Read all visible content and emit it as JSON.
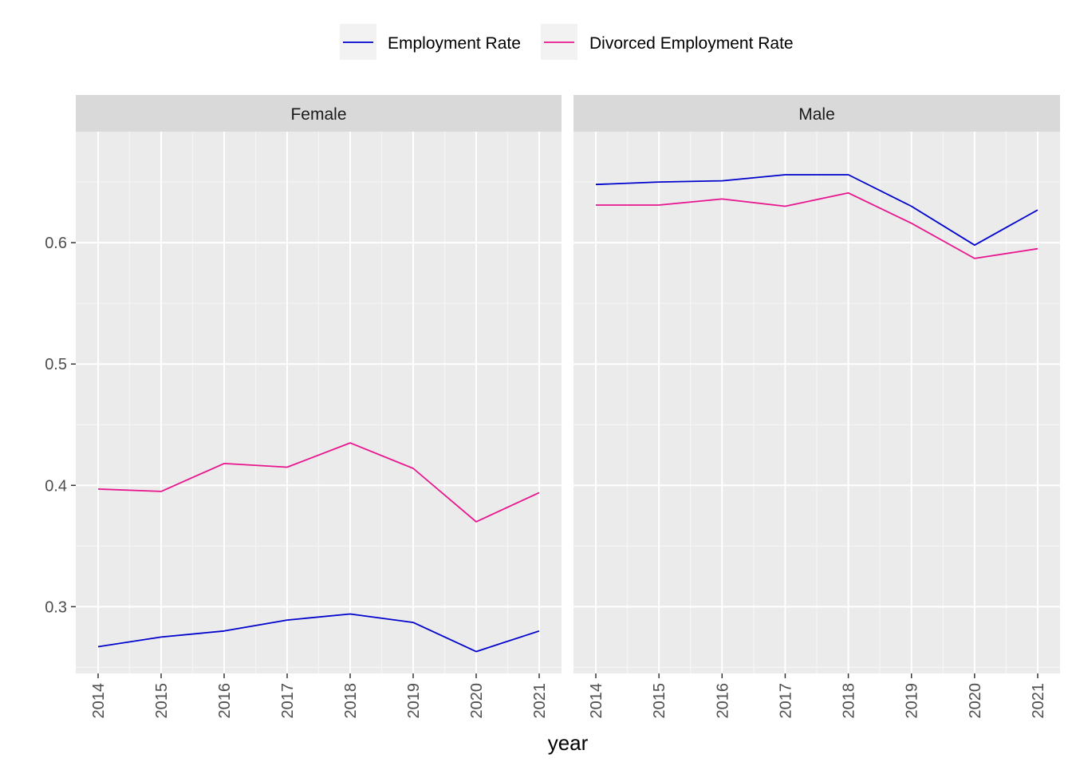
{
  "chart_data": {
    "type": "line",
    "xlabel": "year",
    "ylabel": "",
    "x": [
      2014,
      2015,
      2016,
      2017,
      2018,
      2019,
      2020,
      2021
    ],
    "x_tick_labels": [
      "2014",
      "2015",
      "2016",
      "2017",
      "2018",
      "2019",
      "2020",
      "2021"
    ],
    "ylim": [
      0.245,
      0.6915
    ],
    "y_ticks": [
      0.3,
      0.4,
      0.5,
      0.6
    ],
    "y_tick_labels": [
      "0.3",
      "0.4",
      "0.5",
      "0.6"
    ],
    "grid": true,
    "legend_position": "top",
    "legend": [
      {
        "name": "Employment Rate",
        "color": "#0000CD"
      },
      {
        "name": "Divorced Employment Rate",
        "color": "#E8168E"
      }
    ],
    "panels": [
      {
        "title": "Female",
        "series": [
          {
            "name": "Employment Rate",
            "color": "#0000CD",
            "values": [
              0.267,
              0.275,
              0.28,
              0.289,
              0.294,
              0.287,
              0.263,
              0.28
            ]
          },
          {
            "name": "Divorced Employment Rate",
            "color": "#E8168E",
            "values": [
              0.397,
              0.395,
              0.418,
              0.415,
              0.435,
              0.414,
              0.37,
              0.394
            ]
          }
        ]
      },
      {
        "title": "Male",
        "series": [
          {
            "name": "Employment Rate",
            "color": "#0000CD",
            "values": [
              0.648,
              0.65,
              0.651,
              0.656,
              0.656,
              0.63,
              0.598,
              0.627
            ]
          },
          {
            "name": "Divorced Employment Rate",
            "color": "#E8168E",
            "values": [
              0.631,
              0.631,
              0.636,
              0.63,
              0.641,
              0.616,
              0.587,
              0.595
            ]
          }
        ]
      }
    ]
  }
}
